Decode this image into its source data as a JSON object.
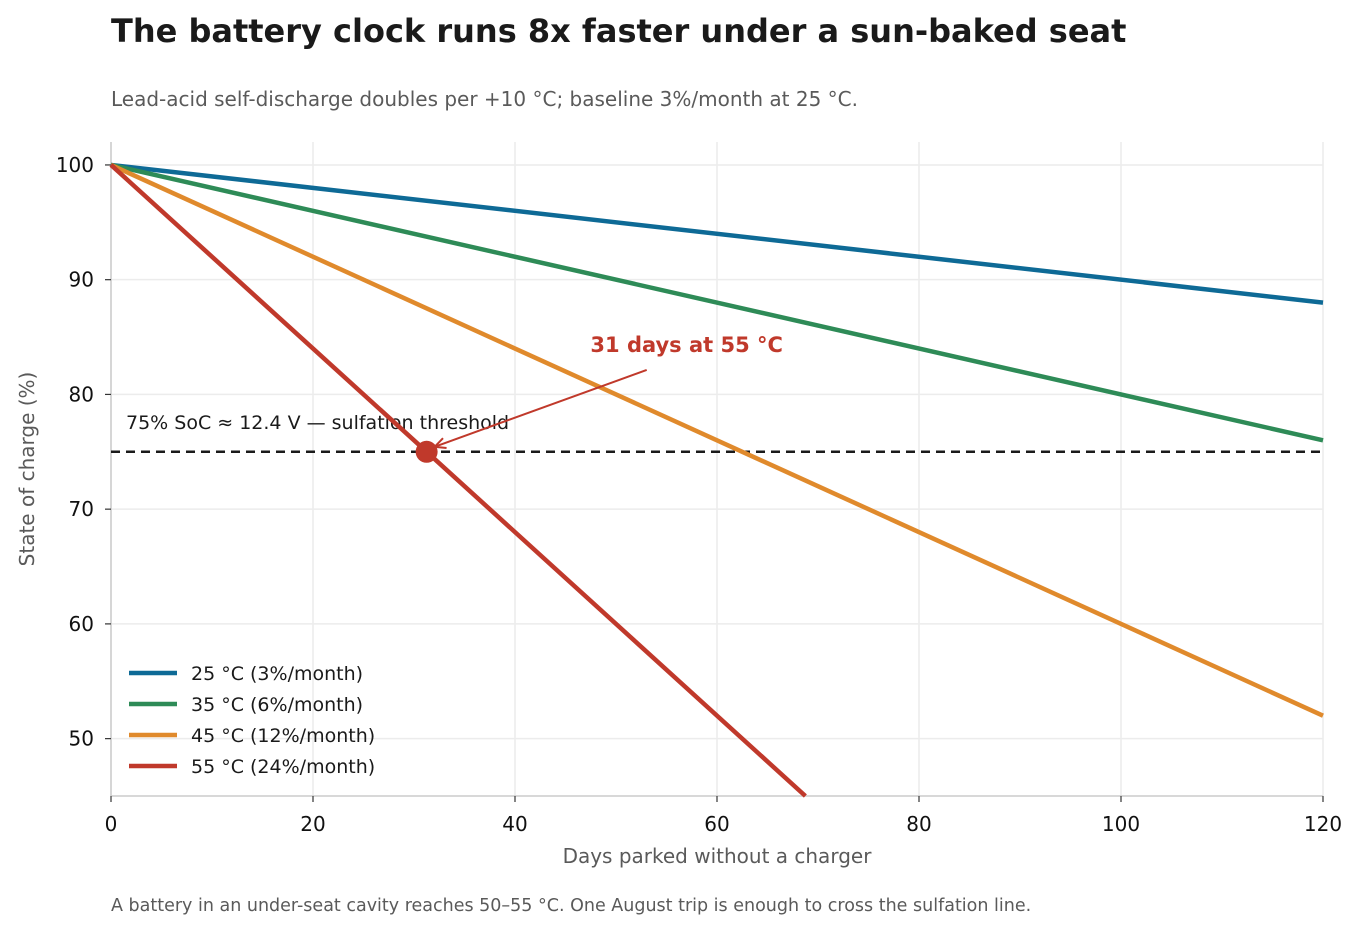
{
  "chart_data": {
    "type": "line",
    "title": "The battery clock runs 8x faster under a sun-baked seat",
    "subtitle": "Lead-acid self-discharge doubles per +10 °C; baseline 3%/month at 25 °C.",
    "xlabel": "Days parked without a charger",
    "ylabel": "State of charge (%)",
    "xlim": [
      0,
      120
    ],
    "ylim": [
      45,
      102
    ],
    "xticks": [
      0,
      20,
      40,
      60,
      80,
      100,
      120
    ],
    "yticks": [
      50,
      60,
      70,
      80,
      90,
      100
    ],
    "grid": true,
    "legend_position": "lower-left",
    "series": [
      {
        "name": "25 °C  (3%/month)",
        "color": "#0e6a96",
        "x": [
          0,
          120
        ],
        "y": [
          100,
          88
        ]
      },
      {
        "name": "35 °C  (6%/month)",
        "color": "#2e8b57",
        "x": [
          0,
          120
        ],
        "y": [
          100,
          76
        ]
      },
      {
        "name": "45 °C  (12%/month)",
        "color": "#e08a2c",
        "x": [
          0,
          120
        ],
        "y": [
          100,
          52
        ]
      },
      {
        "name": "55 °C  (24%/month)",
        "color": "#c0392b",
        "x": [
          0,
          68.75
        ],
        "y": [
          100,
          45
        ]
      }
    ],
    "reference_line": {
      "y": 75,
      "label": "75% SoC ≈ 12.4 V — sulfation threshold",
      "color": "#1a1a1a"
    },
    "annotation": {
      "text": "31 days at 55 °C",
      "point": [
        31.25,
        75
      ],
      "text_at": [
        57,
        83.7
      ],
      "color": "#c0392b"
    }
  },
  "footnote": "A battery in an under-seat cavity reaches 50–55 °C. One August trip is enough to cross the sulfation line."
}
